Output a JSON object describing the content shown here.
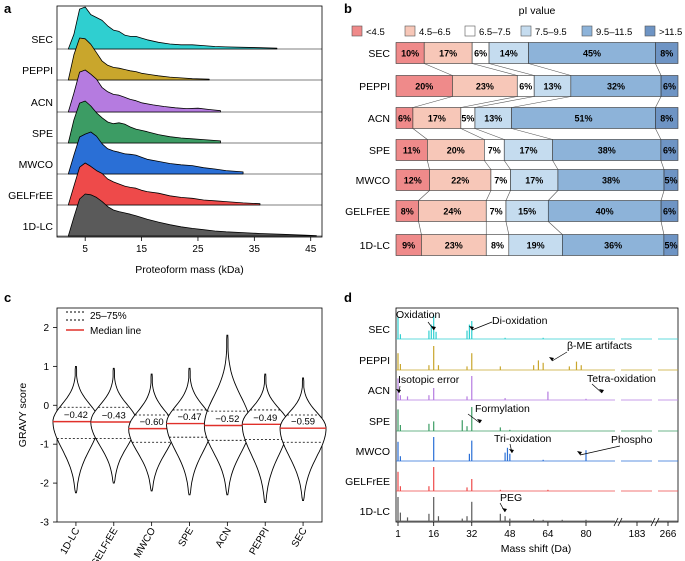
{
  "panels": {
    "a": "a",
    "b": "b",
    "c": "c",
    "d": "d"
  },
  "chart_data": [
    {
      "id": "a",
      "type": "ridgeline",
      "xlabel": "Proteoform mass (kDa)",
      "xticks": [
        5,
        15,
        25,
        35,
        45
      ],
      "xlim": [
        0,
        47
      ],
      "series": [
        {
          "name": "SEC",
          "color": "#2fcfd0",
          "end": 39,
          "x": [
            2,
            3,
            4,
            5,
            6,
            7,
            8,
            9,
            10,
            11,
            12,
            13,
            14,
            15,
            16,
            18,
            20,
            22,
            24,
            26,
            28,
            30,
            33,
            36,
            39
          ],
          "y": [
            0,
            0.35,
            0.95,
            1,
            0.82,
            0.75,
            0.68,
            0.55,
            0.45,
            0.42,
            0.33,
            0.3,
            0.3,
            0.26,
            0.22,
            0.16,
            0.12,
            0.1,
            0.1,
            0.08,
            0.06,
            0.05,
            0.04,
            0.03,
            0.02
          ]
        },
        {
          "name": "PEPPI",
          "color": "#c9a62c",
          "end": 27,
          "x": [
            2,
            3,
            4,
            5,
            6,
            7,
            8,
            9,
            10,
            11,
            12,
            13,
            14,
            15,
            16,
            17,
            18,
            20,
            22,
            24,
            27
          ],
          "y": [
            0,
            0.6,
            1,
            0.98,
            0.85,
            0.65,
            0.45,
            0.35,
            0.3,
            0.28,
            0.25,
            0.22,
            0.2,
            0.16,
            0.14,
            0.12,
            0.1,
            0.07,
            0.05,
            0.03,
            0.02
          ]
        },
        {
          "name": "ACN",
          "color": "#b57be0",
          "end": 29,
          "x": [
            2,
            3,
            4,
            5,
            6,
            7,
            8,
            9,
            10,
            11,
            12,
            13,
            14,
            15,
            17,
            19,
            21,
            23,
            25,
            27,
            29
          ],
          "y": [
            0,
            0.45,
            0.95,
            1,
            0.9,
            0.78,
            0.58,
            0.48,
            0.42,
            0.4,
            0.35,
            0.3,
            0.27,
            0.22,
            0.17,
            0.13,
            0.1,
            0.08,
            0.09,
            0.06,
            0.03
          ]
        },
        {
          "name": "SPE",
          "color": "#3c9c64",
          "end": 29,
          "x": [
            2,
            3,
            4,
            5,
            6,
            7,
            8,
            9,
            10,
            11,
            12,
            13,
            14,
            15,
            16,
            18,
            20,
            22,
            24,
            26,
            29
          ],
          "y": [
            0,
            0.55,
            0.95,
            1,
            0.88,
            0.72,
            0.6,
            0.5,
            0.46,
            0.48,
            0.45,
            0.38,
            0.33,
            0.3,
            0.27,
            0.2,
            0.15,
            0.12,
            0.1,
            0.08,
            0.05
          ]
        },
        {
          "name": "MWCO",
          "color": "#2a6fd6",
          "end": 33,
          "x": [
            2,
            3,
            4,
            5,
            6,
            7,
            8,
            9,
            10,
            11,
            12,
            13,
            14,
            15,
            16,
            18,
            20,
            22,
            24,
            26,
            28,
            30,
            33
          ],
          "y": [
            0,
            0.45,
            0.88,
            0.95,
            1,
            0.9,
            0.72,
            0.6,
            0.55,
            0.52,
            0.48,
            0.47,
            0.45,
            0.4,
            0.35,
            0.3,
            0.25,
            0.22,
            0.2,
            0.15,
            0.12,
            0.08,
            0.05
          ]
        },
        {
          "name": "GELFrEE",
          "color": "#ee4a4a",
          "end": 36,
          "x": [
            2,
            3,
            4,
            5,
            6,
            7,
            8,
            9,
            10,
            11,
            12,
            13,
            14,
            15,
            16,
            18,
            20,
            22,
            24,
            26,
            28,
            30,
            33,
            36
          ],
          "y": [
            0,
            0.45,
            0.9,
            1,
            0.92,
            0.82,
            0.75,
            0.62,
            0.55,
            0.5,
            0.45,
            0.42,
            0.4,
            0.35,
            0.32,
            0.28,
            0.22,
            0.18,
            0.16,
            0.12,
            0.1,
            0.08,
            0.05,
            0.03
          ]
        },
        {
          "name": "1D-LC",
          "color": "#5a5a5a",
          "end": 46,
          "x": [
            2,
            3,
            4,
            5,
            6,
            7,
            8,
            9,
            10,
            11,
            12,
            13,
            14,
            15,
            16,
            18,
            20,
            22,
            24,
            26,
            28,
            30,
            33,
            36,
            40,
            44,
            46
          ],
          "y": [
            0,
            0.45,
            0.88,
            1,
            0.98,
            0.92,
            0.82,
            0.7,
            0.62,
            0.58,
            0.55,
            0.52,
            0.48,
            0.44,
            0.4,
            0.33,
            0.27,
            0.22,
            0.18,
            0.15,
            0.12,
            0.1,
            0.08,
            0.06,
            0.04,
            0.02,
            0.01
          ]
        }
      ]
    },
    {
      "id": "b",
      "type": "stacked-bar-horizontal",
      "title": "pI value",
      "legend": [
        "<4.5",
        "4.5–6.5",
        "6.5–7.5",
        "7.5–9.5",
        "9.5–11.5",
        ">11.5"
      ],
      "colors": [
        "#ef8a8a",
        "#f7c7b8",
        "#ffffff",
        "#c5dcef",
        "#8db3d9",
        "#6e94c4"
      ],
      "categories": [
        "SEC",
        "PEPPI",
        "ACN",
        "SPE",
        "MWCO",
        "GELFrEE",
        "1D-LC"
      ],
      "values": [
        [
          10,
          17,
          6,
          14,
          45,
          8
        ],
        [
          20,
          23,
          6,
          13,
          32,
          6
        ],
        [
          6,
          17,
          5,
          13,
          51,
          8
        ],
        [
          11,
          20,
          7,
          17,
          38,
          6
        ],
        [
          12,
          22,
          7,
          17,
          38,
          5
        ],
        [
          8,
          24,
          7,
          15,
          40,
          6
        ],
        [
          9,
          23,
          8,
          19,
          36,
          5
        ]
      ],
      "labels": [
        [
          "10%",
          "17%",
          "6%",
          "14%",
          "45%",
          "8%"
        ],
        [
          "20%",
          "23%",
          "6%",
          "13%",
          "32%",
          "6%"
        ],
        [
          "6%",
          "17%",
          "5%",
          "13%",
          "51%",
          "8%"
        ],
        [
          "11%",
          "20%",
          "7%",
          "17%",
          "38%",
          "6%"
        ],
        [
          "12%",
          "22%",
          "7%",
          "17%",
          "38%",
          "5%"
        ],
        [
          "8%",
          "24%",
          "7%",
          "15%",
          "40%",
          "6%"
        ],
        [
          "9%",
          "23%",
          "8%",
          "19%",
          "36%",
          "5%"
        ]
      ]
    },
    {
      "id": "c",
      "type": "violin",
      "ylabel": "GRAVY score",
      "ylim": [
        -3,
        2.5
      ],
      "yticks": [
        -3,
        -2,
        -1,
        0,
        1,
        2
      ],
      "legend": {
        "quartile": "25–75%",
        "median": "Median line"
      },
      "categories": [
        "1D-LC",
        "GELFrEE",
        "MWCO",
        "SPE",
        "ACN",
        "PEPPI",
        "SEC"
      ],
      "medians": [
        -0.42,
        -0.43,
        -0.6,
        -0.47,
        -0.52,
        -0.49,
        -0.59
      ],
      "median_labels": [
        "−0.42",
        "−0.43",
        "−0.60",
        "−0.47",
        "−0.52",
        "−0.49",
        "−0.59"
      ],
      "q1": [
        -0.85,
        -0.85,
        -0.95,
        -0.82,
        -0.9,
        -0.88,
        -0.95
      ],
      "q3": [
        -0.05,
        -0.05,
        -0.25,
        -0.12,
        -0.15,
        -0.12,
        -0.25
      ],
      "min": [
        -2.25,
        -2.0,
        -2.2,
        -2.3,
        -2.3,
        -2.5,
        -2.45
      ],
      "max": [
        1.0,
        0.95,
        0.8,
        0.95,
        1.8,
        0.8,
        0.7
      ]
    },
    {
      "id": "d",
      "type": "stacked-spectra",
      "xlabel": "Mass shift (Da)",
      "xtick_labels": [
        "1",
        "16",
        "32",
        "48",
        "64",
        "80",
        "183",
        "266"
      ],
      "categories": [
        "SEC",
        "PEPPI",
        "ACN",
        "SPE",
        "MWCO",
        "GELFrEE",
        "1D-LC"
      ],
      "colors": [
        "#2fcfd0",
        "#c9a62c",
        "#b57be0",
        "#3c9c64",
        "#2a6fd6",
        "#ee4a4a",
        "#5a5a5a"
      ],
      "peaks": [
        [
          [
            1,
            0.9
          ],
          [
            2,
            0.2
          ],
          [
            14,
            0.35
          ],
          [
            15,
            0.6
          ],
          [
            16,
            1
          ],
          [
            17,
            0.3
          ],
          [
            30,
            0.35
          ],
          [
            31,
            0.6
          ],
          [
            32,
            0.75
          ],
          [
            46,
            0.05
          ],
          [
            62,
            0.05
          ]
        ],
        [
          [
            1,
            0.7
          ],
          [
            2,
            0.25
          ],
          [
            14,
            0.2
          ],
          [
            16,
            1
          ],
          [
            18,
            0.2
          ],
          [
            32,
            0.7
          ],
          [
            30,
            0.15
          ],
          [
            44,
            0.15
          ],
          [
            58,
            0.2
          ],
          [
            60,
            0.4
          ],
          [
            62,
            0.3
          ],
          [
            73,
            0.15
          ],
          [
            76,
            0.35
          ],
          [
            78,
            0.2
          ]
        ],
        [
          [
            1,
            0.9
          ],
          [
            2,
            0.2
          ],
          [
            5,
            0.15
          ],
          [
            14,
            0.2
          ],
          [
            16,
            0.5
          ],
          [
            32,
            1
          ],
          [
            30,
            0.15
          ],
          [
            46,
            0.08
          ],
          [
            64,
            0.35
          ],
          [
            80,
            0.05
          ]
        ],
        [
          [
            1,
            0.9
          ],
          [
            2,
            0.25
          ],
          [
            14,
            0.3
          ],
          [
            16,
            0.4
          ],
          [
            28,
            0.45
          ],
          [
            32,
            1
          ],
          [
            30,
            0.2
          ],
          [
            44,
            0.15
          ],
          [
            48,
            0.05
          ]
        ],
        [
          [
            1,
            0.8
          ],
          [
            2,
            0.2
          ],
          [
            16,
            1
          ],
          [
            32,
            0.85
          ],
          [
            31,
            0.3
          ],
          [
            46,
            0.35
          ],
          [
            47,
            0.55
          ],
          [
            48,
            0.3
          ],
          [
            80,
            0.45
          ],
          [
            62,
            0.05
          ]
        ],
        [
          [
            1,
            0.8
          ],
          [
            2,
            0.2
          ],
          [
            14,
            0.2
          ],
          [
            16,
            1
          ],
          [
            32,
            0.5
          ],
          [
            30,
            0.15
          ],
          [
            44,
            0.05
          ],
          [
            64,
            0.05
          ]
        ],
        [
          [
            1,
            1
          ],
          [
            2,
            0.35
          ],
          [
            5,
            0.15
          ],
          [
            14,
            0.3
          ],
          [
            16,
            1
          ],
          [
            18,
            0.2
          ],
          [
            28,
            0.1
          ],
          [
            32,
            0.8
          ],
          [
            30,
            0.2
          ],
          [
            44,
            0.3
          ],
          [
            46,
            0.2
          ],
          [
            48,
            0.1
          ],
          [
            58,
            0.08
          ],
          [
            62,
            0.05
          ],
          [
            70,
            0.05
          ],
          [
            80,
            0.05
          ]
        ]
      ],
      "annotations": [
        "Oxidation",
        "Di-oxidation",
        "β-ME artifacts",
        "Isotopic error",
        "Tetra-oxidation",
        "Formylation",
        "Tri-oxidation",
        "Phospho",
        "PEG"
      ]
    }
  ]
}
